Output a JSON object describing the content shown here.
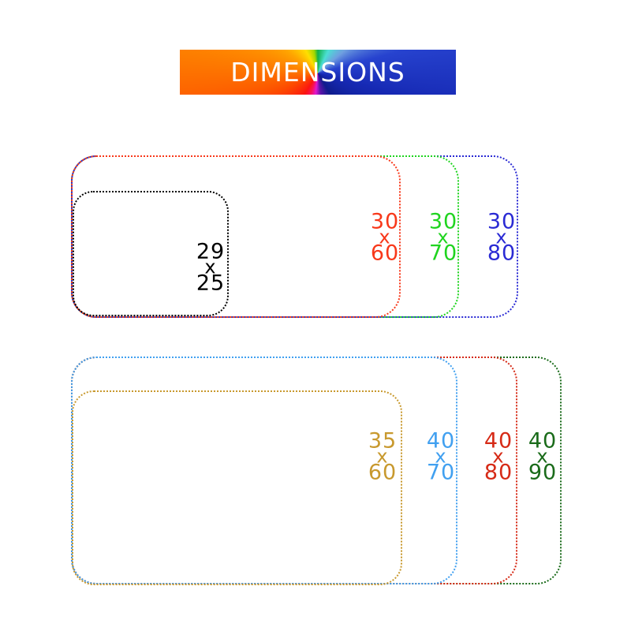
{
  "banner": {
    "text": "DIMENSIONS",
    "text_color": "#ffffff",
    "conic_center": "50% 52%",
    "conic_stops": [
      "#12b14b 0deg",
      "#4cdfd4 25deg",
      "#6f9fe0 50deg",
      "#2743cf 75deg",
      "#1629b4 105deg",
      "#0f1c8c 150deg",
      "#5a14a8 172deg",
      "#e018cf 186deg",
      "#f81060 198deg",
      "#fb1411 212deg",
      "#fd4a00 245deg",
      "#fd7900 275deg",
      "#ffa400 305deg",
      "#ffdf00 332deg",
      "#a3d800 350deg",
      "#12b14b 360deg"
    ]
  },
  "sizes": [
    {
      "name": "29x25",
      "dim1": "29",
      "sep": "x",
      "dim2": "25",
      "color": "#000000",
      "group": "top"
    },
    {
      "name": "30x60",
      "dim1": "30",
      "sep": "x",
      "dim2": "60",
      "color": "#f8381a",
      "group": "top"
    },
    {
      "name": "30x70",
      "dim1": "30",
      "sep": "x",
      "dim2": "70",
      "color": "#1fd41f",
      "group": "top"
    },
    {
      "name": "30x80",
      "dim1": "30",
      "sep": "x",
      "dim2": "80",
      "color": "#2a2ad4",
      "group": "top"
    },
    {
      "name": "35x60",
      "dim1": "35",
      "sep": "x",
      "dim2": "60",
      "color": "#c8992e",
      "group": "bottom"
    },
    {
      "name": "40x70",
      "dim1": "40",
      "sep": "x",
      "dim2": "70",
      "color": "#41a0f0",
      "group": "bottom"
    },
    {
      "name": "40x80",
      "dim1": "40",
      "sep": "x",
      "dim2": "80",
      "color": "#d62a16",
      "group": "bottom"
    },
    {
      "name": "40x90",
      "dim1": "40",
      "sep": "x",
      "dim2": "90",
      "color": "#1a6b1a",
      "group": "bottom"
    }
  ]
}
